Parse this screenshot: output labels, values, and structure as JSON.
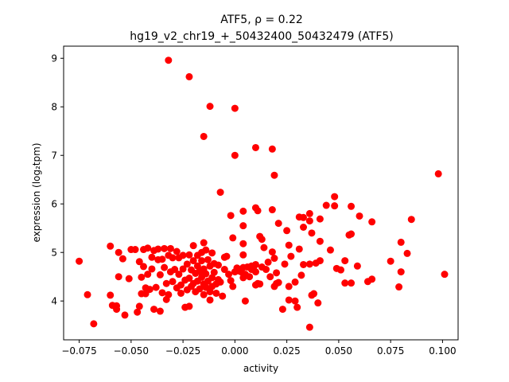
{
  "chart_data": {
    "type": "scatter",
    "title_line1": "ATF5, ρ = 0.22",
    "title_line2": "hg19_v2_chr19_+_50432400_50432479 (ATF5)",
    "xlabel": "activity",
    "ylabel": "expression (log₂tpm)",
    "xlim": [
      -0.0825,
      0.1075
    ],
    "ylim": [
      3.2,
      9.25
    ],
    "xticks": [
      -0.075,
      -0.05,
      -0.025,
      0.0,
      0.025,
      0.05,
      0.075,
      0.1
    ],
    "xtick_labels": [
      "−0.075",
      "−0.050",
      "−0.025",
      "0.000",
      "0.025",
      "0.050",
      "0.075",
      "0.100"
    ],
    "yticks": [
      4,
      5,
      6,
      7,
      8,
      9
    ],
    "ytick_labels": [
      "4",
      "5",
      "6",
      "7",
      "8",
      "9"
    ],
    "grid": false,
    "marker_color": "#ff0000",
    "points": [
      {
        "x": -0.032,
        "y": 8.96
      },
      {
        "x": -0.022,
        "y": 8.62
      },
      {
        "x": -0.012,
        "y": 8.01
      },
      {
        "x": 0.0,
        "y": 7.97
      },
      {
        "x": -0.015,
        "y": 7.39
      },
      {
        "x": 0.01,
        "y": 7.16
      },
      {
        "x": 0.018,
        "y": 7.13
      },
      {
        "x": 0.0,
        "y": 7.0
      },
      {
        "x": 0.019,
        "y": 6.59
      },
      {
        "x": 0.098,
        "y": 6.62
      },
      {
        "x": -0.007,
        "y": 6.24
      },
      {
        "x": 0.048,
        "y": 6.15
      },
      {
        "x": 0.044,
        "y": 5.97
      },
      {
        "x": 0.048,
        "y": 5.96
      },
      {
        "x": 0.056,
        "y": 5.95
      },
      {
        "x": 0.01,
        "y": 5.92
      },
      {
        "x": 0.018,
        "y": 5.88
      },
      {
        "x": 0.011,
        "y": 5.86
      },
      {
        "x": 0.004,
        "y": 5.85
      },
      {
        "x": 0.036,
        "y": 5.8
      },
      {
        "x": -0.002,
        "y": 5.76
      },
      {
        "x": 0.06,
        "y": 5.75
      },
      {
        "x": 0.031,
        "y": 5.73
      },
      {
        "x": 0.033,
        "y": 5.72
      },
      {
        "x": 0.041,
        "y": 5.69
      },
      {
        "x": 0.085,
        "y": 5.68
      },
      {
        "x": 0.036,
        "y": 5.65
      },
      {
        "x": 0.066,
        "y": 5.63
      },
      {
        "x": 0.021,
        "y": 5.6
      },
      {
        "x": 0.004,
        "y": 5.55
      },
      {
        "x": 0.033,
        "y": 5.52
      },
      {
        "x": 0.025,
        "y": 5.45
      },
      {
        "x": 0.037,
        "y": 5.4
      },
      {
        "x": 0.056,
        "y": 5.38
      },
      {
        "x": 0.055,
        "y": 5.36
      },
      {
        "x": 0.012,
        "y": 5.33
      },
      {
        "x": -0.001,
        "y": 5.3
      },
      {
        "x": 0.013,
        "y": 5.27
      },
      {
        "x": 0.041,
        "y": 5.23
      },
      {
        "x": 0.08,
        "y": 5.21
      },
      {
        "x": 0.004,
        "y": 5.18
      },
      {
        "x": 0.026,
        "y": 5.15
      },
      {
        "x": 0.014,
        "y": 5.1
      },
      {
        "x": 0.031,
        "y": 5.07
      },
      {
        "x": 0.046,
        "y": 5.05
      },
      {
        "x": 0.018,
        "y": 5.01
      },
      {
        "x": 0.083,
        "y": 4.98
      },
      {
        "x": 0.004,
        "y": 4.95
      },
      {
        "x": 0.027,
        "y": 4.92
      },
      {
        "x": -0.005,
        "y": 4.9
      },
      {
        "x": 0.019,
        "y": 4.88
      },
      {
        "x": 0.041,
        "y": 4.83
      },
      {
        "x": 0.053,
        "y": 4.83
      },
      {
        "x": 0.075,
        "y": 4.82
      },
      {
        "x": 0.016,
        "y": 4.8
      },
      {
        "x": 0.039,
        "y": 4.78
      },
      {
        "x": 0.024,
        "y": 4.76
      },
      {
        "x": 0.036,
        "y": 4.76
      },
      {
        "x": 0.01,
        "y": 4.75
      },
      {
        "x": 0.033,
        "y": 4.75
      },
      {
        "x": 0.059,
        "y": 4.72
      },
      {
        "x": 0.008,
        "y": 4.72
      },
      {
        "x": 0.004,
        "y": 4.69
      },
      {
        "x": 0.049,
        "y": 4.67
      },
      {
        "x": 0.051,
        "y": 4.64
      },
      {
        "x": 0.002,
        "y": 4.62
      },
      {
        "x": 0.08,
        "y": 4.6
      },
      {
        "x": 0.02,
        "y": 4.58
      },
      {
        "x": 0.101,
        "y": 4.55
      },
      {
        "x": 0.032,
        "y": 4.53
      },
      {
        "x": 0.004,
        "y": 4.48
      },
      {
        "x": 0.066,
        "y": 4.45
      },
      {
        "x": 0.064,
        "y": 4.4
      },
      {
        "x": 0.029,
        "y": 4.39
      },
      {
        "x": 0.021,
        "y": 4.38
      },
      {
        "x": 0.053,
        "y": 4.37
      },
      {
        "x": 0.056,
        "y": 4.37
      },
      {
        "x": 0.011,
        "y": 4.36
      },
      {
        "x": 0.02,
        "y": 4.36
      },
      {
        "x": 0.01,
        "y": 4.33
      },
      {
        "x": 0.079,
        "y": 4.29
      },
      {
        "x": 0.026,
        "y": 4.3
      },
      {
        "x": 0.038,
        "y": 4.15
      },
      {
        "x": 0.037,
        "y": 4.12
      },
      {
        "x": 0.026,
        "y": 4.02
      },
      {
        "x": 0.029,
        "y": 4.0
      },
      {
        "x": 0.005,
        "y": 4.0
      },
      {
        "x": 0.04,
        "y": 3.96
      },
      {
        "x": 0.03,
        "y": 3.87
      },
      {
        "x": 0.023,
        "y": 3.83
      },
      {
        "x": 0.036,
        "y": 3.46
      },
      {
        "x": -0.075,
        "y": 4.82
      },
      {
        "x": -0.071,
        "y": 4.13
      },
      {
        "x": -0.068,
        "y": 3.53
      },
      {
        "x": -0.06,
        "y": 5.13
      },
      {
        "x": -0.06,
        "y": 4.12
      },
      {
        "x": -0.059,
        "y": 3.91
      },
      {
        "x": -0.057,
        "y": 3.83
      },
      {
        "x": -0.057,
        "y": 3.9
      },
      {
        "x": -0.056,
        "y": 5.0
      },
      {
        "x": -0.056,
        "y": 4.5
      },
      {
        "x": -0.054,
        "y": 4.87
      },
      {
        "x": -0.053,
        "y": 3.71
      },
      {
        "x": -0.051,
        "y": 4.46
      },
      {
        "x": -0.05,
        "y": 5.06
      },
      {
        "x": -0.048,
        "y": 5.06
      },
      {
        "x": -0.047,
        "y": 3.77
      },
      {
        "x": -0.046,
        "y": 4.81
      },
      {
        "x": -0.046,
        "y": 3.89
      },
      {
        "x": -0.045,
        "y": 4.49
      },
      {
        "x": -0.045,
        "y": 4.15
      },
      {
        "x": -0.044,
        "y": 5.06
      },
      {
        "x": -0.044,
        "y": 4.71
      },
      {
        "x": -0.043,
        "y": 4.27
      },
      {
        "x": -0.043,
        "y": 4.15
      },
      {
        "x": -0.042,
        "y": 5.09
      },
      {
        "x": -0.042,
        "y": 4.55
      },
      {
        "x": -0.041,
        "y": 4.24
      },
      {
        "x": -0.04,
        "y": 4.9
      },
      {
        "x": -0.04,
        "y": 4.66
      },
      {
        "x": -0.039,
        "y": 5.04
      },
      {
        "x": -0.039,
        "y": 3.83
      },
      {
        "x": -0.038,
        "y": 4.28
      },
      {
        "x": -0.037,
        "y": 5.07
      },
      {
        "x": -0.037,
        "y": 4.85
      },
      {
        "x": -0.036,
        "y": 3.79
      },
      {
        "x": -0.036,
        "y": 4.54
      },
      {
        "x": -0.035,
        "y": 4.86
      },
      {
        "x": -0.035,
        "y": 4.17
      },
      {
        "x": -0.034,
        "y": 5.08
      },
      {
        "x": -0.034,
        "y": 4.69
      },
      {
        "x": -0.033,
        "y": 4.36
      },
      {
        "x": -0.033,
        "y": 4.03
      },
      {
        "x": -0.032,
        "y": 4.94
      },
      {
        "x": -0.032,
        "y": 4.13
      },
      {
        "x": -0.031,
        "y": 5.08
      },
      {
        "x": -0.031,
        "y": 4.6
      },
      {
        "x": -0.03,
        "y": 4.89
      },
      {
        "x": -0.03,
        "y": 4.4
      },
      {
        "x": -0.029,
        "y": 4.65
      },
      {
        "x": -0.028,
        "y": 5.02
      },
      {
        "x": -0.028,
        "y": 4.27
      },
      {
        "x": -0.027,
        "y": 4.89
      },
      {
        "x": -0.027,
        "y": 4.55
      },
      {
        "x": -0.026,
        "y": 4.33
      },
      {
        "x": -0.026,
        "y": 4.16
      },
      {
        "x": -0.025,
        "y": 4.94
      },
      {
        "x": -0.025,
        "y": 4.66
      },
      {
        "x": -0.024,
        "y": 4.43
      },
      {
        "x": -0.024,
        "y": 3.87
      },
      {
        "x": -0.023,
        "y": 4.76
      },
      {
        "x": -0.023,
        "y": 4.23
      },
      {
        "x": -0.022,
        "y": 4.95
      },
      {
        "x": -0.022,
        "y": 4.47
      },
      {
        "x": -0.022,
        "y": 3.89
      },
      {
        "x": -0.021,
        "y": 4.64
      },
      {
        "x": -0.021,
        "y": 4.3
      },
      {
        "x": -0.02,
        "y": 5.14
      },
      {
        "x": -0.02,
        "y": 4.83
      },
      {
        "x": -0.02,
        "y": 4.36
      },
      {
        "x": -0.019,
        "y": 4.57
      },
      {
        "x": -0.019,
        "y": 4.19
      },
      {
        "x": -0.018,
        "y": 4.94
      },
      {
        "x": -0.018,
        "y": 4.72
      },
      {
        "x": -0.018,
        "y": 4.41
      },
      {
        "x": -0.017,
        "y": 4.61
      },
      {
        "x": -0.017,
        "y": 4.25
      },
      {
        "x": -0.016,
        "y": 5.0
      },
      {
        "x": -0.016,
        "y": 4.83
      },
      {
        "x": -0.016,
        "y": 4.49
      },
      {
        "x": -0.015,
        "y": 5.2
      },
      {
        "x": -0.015,
        "y": 4.66
      },
      {
        "x": -0.015,
        "y": 4.35
      },
      {
        "x": -0.015,
        "y": 4.13
      },
      {
        "x": -0.014,
        "y": 5.05
      },
      {
        "x": -0.014,
        "y": 4.56
      },
      {
        "x": -0.014,
        "y": 4.28
      },
      {
        "x": -0.013,
        "y": 4.85
      },
      {
        "x": -0.013,
        "y": 4.41
      },
      {
        "x": -0.012,
        "y": 4.72
      },
      {
        "x": -0.012,
        "y": 4.19
      },
      {
        "x": -0.012,
        "y": 4.02
      },
      {
        "x": -0.011,
        "y": 4.99
      },
      {
        "x": -0.011,
        "y": 4.48
      },
      {
        "x": -0.011,
        "y": 4.3
      },
      {
        "x": -0.01,
        "y": 4.77
      },
      {
        "x": -0.01,
        "y": 4.59
      },
      {
        "x": -0.009,
        "y": 4.35
      },
      {
        "x": -0.009,
        "y": 4.16
      },
      {
        "x": -0.008,
        "y": 4.74
      },
      {
        "x": -0.008,
        "y": 4.44
      },
      {
        "x": -0.007,
        "y": 4.39
      },
      {
        "x": -0.006,
        "y": 4.1
      },
      {
        "x": -0.005,
        "y": 4.65
      },
      {
        "x": -0.004,
        "y": 4.92
      },
      {
        "x": -0.003,
        "y": 4.55
      },
      {
        "x": -0.002,
        "y": 4.42
      },
      {
        "x": -0.001,
        "y": 4.3
      },
      {
        "x": 0.0,
        "y": 4.6
      },
      {
        "x": 0.001,
        "y": 4.68
      },
      {
        "x": 0.002,
        "y": 4.65
      },
      {
        "x": 0.003,
        "y": 4.6
      },
      {
        "x": 0.005,
        "y": 4.55
      },
      {
        "x": 0.006,
        "y": 4.7
      },
      {
        "x": 0.007,
        "y": 4.5
      },
      {
        "x": 0.008,
        "y": 4.65
      },
      {
        "x": 0.009,
        "y": 4.7
      },
      {
        "x": 0.01,
        "y": 4.6
      },
      {
        "x": 0.012,
        "y": 4.35
      },
      {
        "x": 0.013,
        "y": 4.7
      },
      {
        "x": 0.015,
        "y": 4.65
      },
      {
        "x": 0.017,
        "y": 4.5
      },
      {
        "x": 0.019,
        "y": 4.3
      }
    ]
  }
}
